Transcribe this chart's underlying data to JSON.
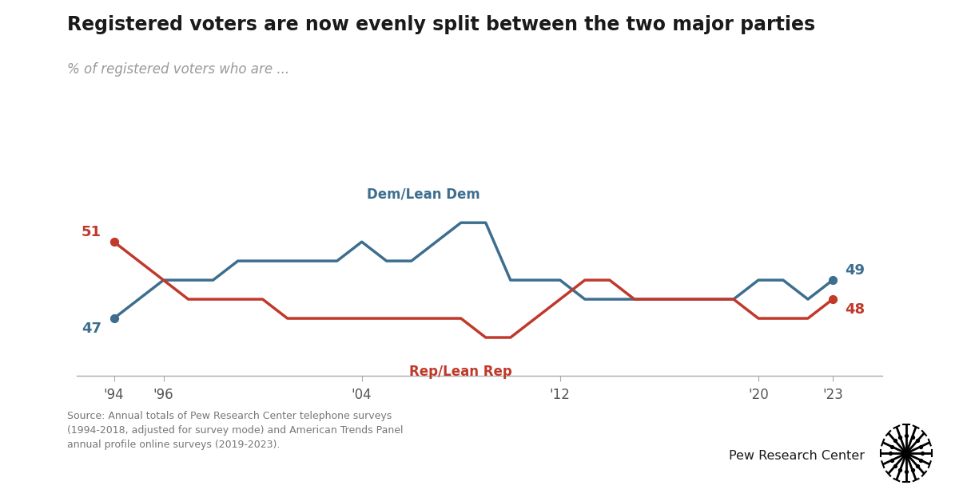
{
  "title": "Registered voters are now evenly split between the two major parties",
  "subtitle": "% of registered voters who are ...",
  "dem_label": "Dem/Lean Dem",
  "rep_label": "Rep/Lean Rep",
  "dem_color": "#3d6e8f",
  "rep_color": "#c0392b",
  "title_color": "#1a1a1a",
  "subtitle_color": "#999999",
  "background_color": "#ffffff",
  "source_text": "Source: Annual totals of Pew Research Center telephone surveys\n(1994-2018, adjusted for survey mode) and American Trends Panel\nannual profile online surveys (2019-2023).",
  "years": [
    1994,
    1995,
    1996,
    1997,
    1998,
    1999,
    2000,
    2001,
    2002,
    2003,
    2004,
    2005,
    2006,
    2007,
    2008,
    2009,
    2010,
    2011,
    2012,
    2013,
    2014,
    2015,
    2016,
    2017,
    2018,
    2019,
    2020,
    2021,
    2022,
    2023
  ],
  "dem_values": [
    47,
    48,
    49,
    49,
    49,
    50,
    50,
    50,
    50,
    50,
    51,
    50,
    50,
    51,
    52,
    52,
    49,
    49,
    49,
    48,
    48,
    48,
    48,
    48,
    48,
    48,
    49,
    49,
    48,
    49
  ],
  "rep_values": [
    51,
    50,
    49,
    48,
    48,
    48,
    48,
    47,
    47,
    47,
    47,
    47,
    47,
    47,
    47,
    46,
    46,
    47,
    48,
    49,
    49,
    48,
    48,
    48,
    48,
    48,
    47,
    47,
    47,
    48
  ],
  "xtick_years": [
    1994,
    1996,
    2004,
    2012,
    2020,
    2023
  ],
  "xtick_labels": [
    "'94",
    "'96",
    "'04",
    "'12",
    "'20",
    "'23"
  ],
  "start_dem_label": "47",
  "start_rep_label": "51",
  "end_dem_label": "49",
  "end_rep_label": "48",
  "ylim_min": 44,
  "ylim_max": 55
}
